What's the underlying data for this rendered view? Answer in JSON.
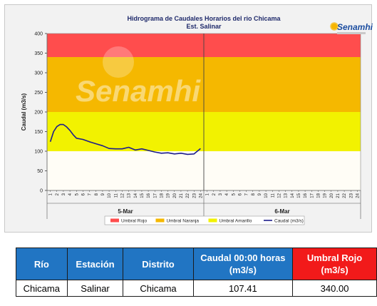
{
  "chart_data": {
    "type": "line",
    "title": "Hidrograma de Caudales Horarios del rio Chicama",
    "subtitle": "Est. Salinar",
    "ylabel": "Caudal  (m3/s)",
    "ylim": [
      0,
      400
    ],
    "yticks": [
      "0",
      "50",
      "100",
      "150",
      "200",
      "250",
      "300",
      "350",
      "400"
    ],
    "hour_ticks": [
      "1",
      "2",
      "3",
      "4",
      "5",
      "6",
      "7",
      "8",
      "9",
      "10",
      "11",
      "12",
      "13",
      "14",
      "15",
      "16",
      "17",
      "18",
      "19",
      "20",
      "21",
      "22",
      "23",
      "24"
    ],
    "day_labels": [
      "5-Mar",
      "6-Mar"
    ],
    "thresholds": [
      {
        "name": "Umbral Rojo",
        "from": 340,
        "to": 400,
        "color": "#ff4d4d"
      },
      {
        "name": "Umbral Naranja",
        "from": 200,
        "to": 340,
        "color": "#f5b800"
      },
      {
        "name": "Umbral Amarillo",
        "from": 100,
        "to": 200,
        "color": "#f2f200"
      }
    ],
    "series": [
      {
        "name": "Caudal (m3/s)",
        "color": "#1c1c8c",
        "x": [
          1,
          1.5,
          2,
          2.5,
          3,
          3.5,
          4,
          4.5,
          5,
          6,
          7,
          8,
          9,
          10,
          11,
          12,
          13,
          14,
          15,
          16,
          17,
          18,
          19,
          20,
          21,
          22,
          23,
          24
        ],
        "values": [
          124,
          150,
          163,
          168,
          168,
          162,
          153,
          142,
          133,
          130,
          124,
          119,
          114,
          107,
          106,
          106,
          110,
          103,
          106,
          102,
          98,
          95,
          96,
          93,
          95,
          92,
          93,
          107
        ]
      }
    ],
    "legend": [
      "Umbral Rojo",
      "Umbral Naranja",
      "Umbral Amarillo",
      "Caudal (m3/s)"
    ],
    "legend_position": "bottom",
    "watermark": "Senamhi"
  },
  "brand": {
    "name": "Senamhi"
  },
  "table": {
    "headers": [
      "Río",
      "Estación",
      "Distrito",
      "Caudal 00:00 horas (m3/s)",
      "Umbral Rojo (m3/s)"
    ],
    "rows": [
      [
        "Chicama",
        "Salinar",
        "Chicama",
        "107.41",
        "340.00"
      ]
    ]
  }
}
